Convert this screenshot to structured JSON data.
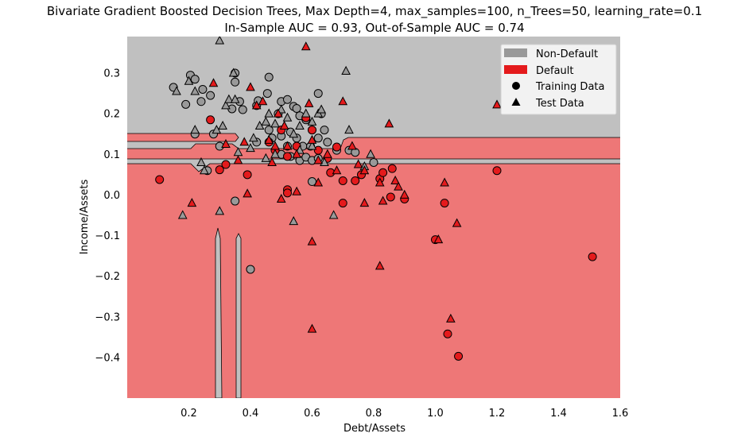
{
  "chart_data": {
    "type": "scatter",
    "title_line1": "Bivariate Gradient Boosted Decision Trees, Max Depth=4, max_samples=100, n_Trees=50, learning_rate=0.1",
    "title_line2": "In-Sample AUC = 0.93, Out-of-Sample AUC = 0.74",
    "xlabel": "Debt/Assets",
    "ylabel": "Income/Assets",
    "xlim": [
      0.0,
      1.6
    ],
    "ylim": [
      -0.5,
      0.39
    ],
    "xticks": [
      "0.2",
      "0.4",
      "0.6",
      "0.8",
      "1.0",
      "1.2",
      "1.4",
      "1.6"
    ],
    "xtick_values": [
      0.2,
      0.4,
      0.6,
      0.8,
      1.0,
      1.2,
      1.4,
      1.6
    ],
    "yticks": [
      "0.3",
      "0.2",
      "0.1",
      "0.0",
      "−0.1",
      "−0.2",
      "−0.3",
      "−0.4"
    ],
    "ytick_values": [
      0.3,
      0.2,
      0.1,
      0.0,
      -0.1,
      -0.2,
      -0.3,
      -0.4
    ],
    "colors": {
      "non_default_region": "#c0c0c0",
      "default_region": "#ee7777",
      "non_default_marker": "#999999",
      "default_marker": "#e41a1c",
      "edge": "#000000"
    },
    "legend": {
      "position": "top-right",
      "entries": [
        {
          "label": "Non-Default",
          "kind": "patch",
          "color": "#999999"
        },
        {
          "label": "Default",
          "kind": "patch",
          "color": "#e41a1c"
        },
        {
          "label": "Training Data",
          "kind": "circle",
          "color": "#000000"
        },
        {
          "label": "Test Data",
          "kind": "triangle",
          "color": "#000000"
        }
      ]
    },
    "series": [
      {
        "name": "Training Data",
        "class": "Non-Default",
        "marker": "circle",
        "points": [
          [
            0.15,
            0.265
          ],
          [
            0.19,
            0.223
          ],
          [
            0.205,
            0.295
          ],
          [
            0.22,
            0.285
          ],
          [
            0.245,
            0.26
          ],
          [
            0.24,
            0.23
          ],
          [
            0.27,
            0.245
          ],
          [
            0.28,
            0.15
          ],
          [
            0.35,
            0.278
          ],
          [
            0.35,
            0.3
          ],
          [
            0.34,
            0.212
          ],
          [
            0.365,
            0.23
          ],
          [
            0.375,
            0.21
          ],
          [
            0.42,
            0.22
          ],
          [
            0.425,
            0.232
          ],
          [
            0.46,
            0.29
          ],
          [
            0.455,
            0.25
          ],
          [
            0.49,
            0.2
          ],
          [
            0.5,
            0.23
          ],
          [
            0.52,
            0.235
          ],
          [
            0.54,
            0.218
          ],
          [
            0.55,
            0.213
          ],
          [
            0.56,
            0.195
          ],
          [
            0.58,
            0.185
          ],
          [
            0.6,
            0.16
          ],
          [
            0.62,
            0.25
          ],
          [
            0.63,
            0.2
          ],
          [
            0.64,
            0.16
          ],
          [
            0.46,
            0.16
          ],
          [
            0.47,
            0.14
          ],
          [
            0.5,
            0.145
          ],
          [
            0.53,
            0.155
          ],
          [
            0.55,
            0.14
          ],
          [
            0.57,
            0.12
          ],
          [
            0.595,
            0.12
          ],
          [
            0.62,
            0.14
          ],
          [
            0.65,
            0.13
          ],
          [
            0.68,
            0.11
          ],
          [
            0.72,
            0.11
          ],
          [
            0.74,
            0.105
          ],
          [
            0.8,
            0.08
          ],
          [
            0.5,
            0.1
          ],
          [
            0.53,
            0.095
          ],
          [
            0.56,
            0.085
          ],
          [
            0.58,
            0.093
          ],
          [
            0.6,
            0.085
          ],
          [
            0.62,
            0.09
          ],
          [
            0.26,
            0.06
          ],
          [
            0.6,
            0.033
          ],
          [
            0.35,
            -0.015
          ],
          [
            0.4,
            -0.183
          ],
          [
            0.22,
            0.15
          ],
          [
            0.3,
            0.12
          ],
          [
            0.42,
            0.13
          ],
          [
            0.52,
            0.12
          ]
        ]
      },
      {
        "name": "Training Data",
        "class": "Default",
        "marker": "circle",
        "points": [
          [
            0.27,
            0.185
          ],
          [
            0.3,
            0.062
          ],
          [
            0.32,
            0.075
          ],
          [
            0.39,
            0.05
          ],
          [
            0.105,
            0.038
          ],
          [
            0.46,
            0.13
          ],
          [
            0.48,
            0.11
          ],
          [
            0.5,
            0.16
          ],
          [
            0.52,
            0.095
          ],
          [
            0.55,
            0.12
          ],
          [
            0.58,
            0.19
          ],
          [
            0.6,
            0.16
          ],
          [
            0.62,
            0.11
          ],
          [
            0.65,
            0.09
          ],
          [
            0.66,
            0.055
          ],
          [
            0.68,
            0.118
          ],
          [
            0.7,
            0.035
          ],
          [
            0.7,
            -0.02
          ],
          [
            0.74,
            0.035
          ],
          [
            0.76,
            0.05
          ],
          [
            0.82,
            0.04
          ],
          [
            0.83,
            0.055
          ],
          [
            0.86,
            0.065
          ],
          [
            0.855,
            -0.005
          ],
          [
            0.9,
            -0.01
          ],
          [
            0.52,
            0.013
          ],
          [
            0.52,
            0.005
          ],
          [
            1.0,
            -0.11
          ],
          [
            1.03,
            -0.02
          ],
          [
            1.04,
            -0.342
          ],
          [
            1.075,
            -0.397
          ],
          [
            1.2,
            0.06
          ],
          [
            1.51,
            -0.152
          ]
        ]
      },
      {
        "name": "Test Data",
        "class": "Non-Default",
        "marker": "triangle",
        "points": [
          [
            0.16,
            0.255
          ],
          [
            0.2,
            0.28
          ],
          [
            0.22,
            0.255
          ],
          [
            0.25,
            0.06
          ],
          [
            0.24,
            0.08
          ],
          [
            0.3,
            0.38
          ],
          [
            0.32,
            0.22
          ],
          [
            0.345,
            0.3
          ],
          [
            0.33,
            0.235
          ],
          [
            0.35,
            0.235
          ],
          [
            0.22,
            0.16
          ],
          [
            0.29,
            0.16
          ],
          [
            0.31,
            0.17
          ],
          [
            0.41,
            0.14
          ],
          [
            0.4,
            0.115
          ],
          [
            0.43,
            0.17
          ],
          [
            0.45,
            0.18
          ],
          [
            0.46,
            0.2
          ],
          [
            0.5,
            0.21
          ],
          [
            0.52,
            0.19
          ],
          [
            0.48,
            0.175
          ],
          [
            0.54,
            0.15
          ],
          [
            0.56,
            0.17
          ],
          [
            0.58,
            0.2
          ],
          [
            0.6,
            0.18
          ],
          [
            0.62,
            0.2
          ],
          [
            0.63,
            0.21
          ],
          [
            0.45,
            0.09
          ],
          [
            0.48,
            0.1
          ],
          [
            0.56,
            0.11
          ],
          [
            0.6,
            0.12
          ],
          [
            0.64,
            0.08
          ],
          [
            0.71,
            0.305
          ],
          [
            0.72,
            0.16
          ],
          [
            0.77,
            0.07
          ],
          [
            0.79,
            0.1
          ],
          [
            0.18,
            -0.05
          ],
          [
            0.3,
            -0.04
          ],
          [
            0.36,
            0.105
          ],
          [
            0.54,
            -0.065
          ],
          [
            0.67,
            -0.05
          ]
        ]
      },
      {
        "name": "Test Data",
        "class": "Default",
        "marker": "triangle",
        "points": [
          [
            0.28,
            0.275
          ],
          [
            0.32,
            0.125
          ],
          [
            0.36,
            0.085
          ],
          [
            0.38,
            0.13
          ],
          [
            0.4,
            0.265
          ],
          [
            0.42,
            0.22
          ],
          [
            0.44,
            0.23
          ],
          [
            0.46,
            0.135
          ],
          [
            0.48,
            0.12
          ],
          [
            0.47,
            0.08
          ],
          [
            0.49,
            0.2
          ],
          [
            0.51,
            0.17
          ],
          [
            0.52,
            0.12
          ],
          [
            0.55,
            0.1
          ],
          [
            0.58,
            0.365
          ],
          [
            0.59,
            0.225
          ],
          [
            0.6,
            0.135
          ],
          [
            0.62,
            0.085
          ],
          [
            0.62,
            0.03
          ],
          [
            0.65,
            0.1
          ],
          [
            0.68,
            0.06
          ],
          [
            0.7,
            0.23
          ],
          [
            0.73,
            0.12
          ],
          [
            0.75,
            0.075
          ],
          [
            0.77,
            0.06
          ],
          [
            0.77,
            -0.02
          ],
          [
            0.82,
            0.03
          ],
          [
            0.83,
            -0.015
          ],
          [
            0.85,
            0.175
          ],
          [
            0.87,
            0.035
          ],
          [
            0.88,
            0.02
          ],
          [
            0.9,
            0.0
          ],
          [
            0.21,
            -0.02
          ],
          [
            0.39,
            0.003
          ],
          [
            0.5,
            -0.01
          ],
          [
            0.55,
            0.008
          ],
          [
            0.6,
            -0.115
          ],
          [
            0.6,
            -0.33
          ],
          [
            0.82,
            -0.175
          ],
          [
            1.01,
            -0.11
          ],
          [
            1.03,
            0.03
          ],
          [
            1.05,
            -0.305
          ],
          [
            1.07,
            -0.07
          ],
          [
            1.2,
            0.222
          ]
        ]
      }
    ]
  }
}
